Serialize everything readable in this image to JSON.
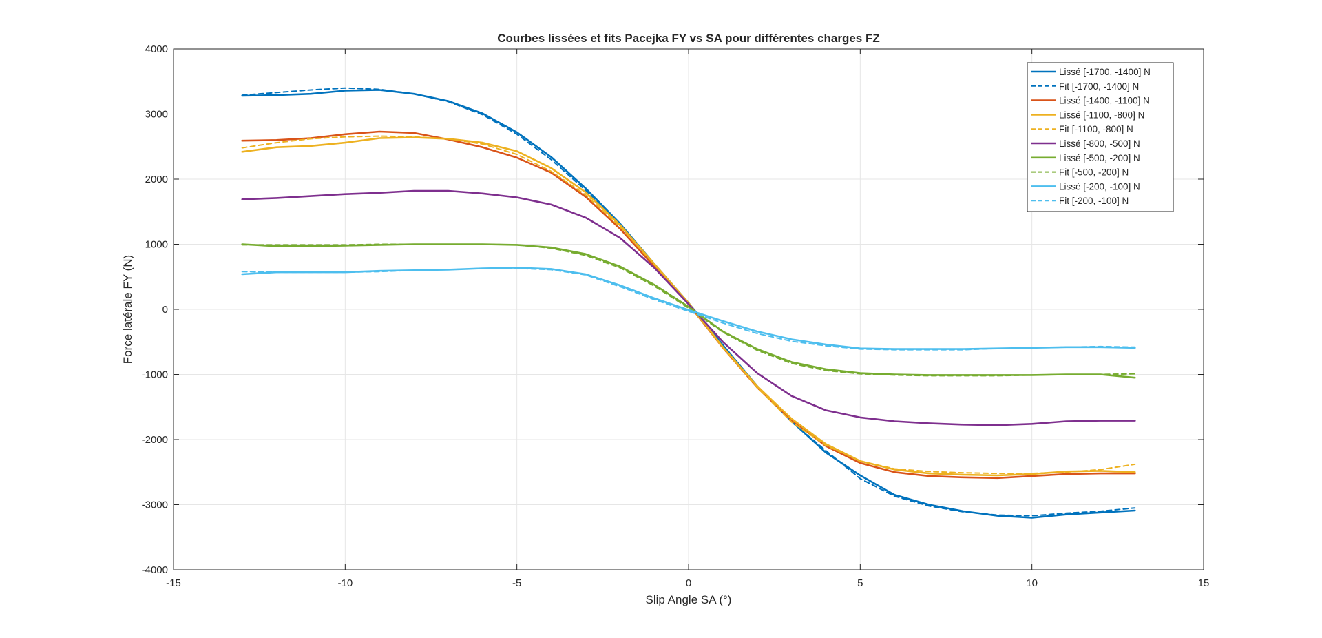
{
  "chart_data": {
    "type": "line",
    "title": "Courbes lissées et fits Pacejka FY vs SA pour différentes charges FZ",
    "xlabel": "Slip Angle SA (°)",
    "ylabel": "Force latérale FY (N)",
    "xlim": [
      -15,
      15
    ],
    "ylim": [
      -4000,
      4000
    ],
    "xticks": [
      -15,
      -10,
      -5,
      0,
      5,
      10,
      15
    ],
    "yticks": [
      -4000,
      -3000,
      -2000,
      -1000,
      0,
      1000,
      2000,
      3000,
      4000
    ],
    "grid": true,
    "legend_position": "top-right",
    "series": [
      {
        "name": "Lissé [-1700, -1400] N",
        "style": "solid",
        "color": "#0072BD",
        "x": [
          -13,
          -12,
          -11,
          -10,
          -9,
          -8,
          -7,
          -6,
          -5,
          -4,
          -3,
          -2,
          -1,
          0,
          1,
          2,
          3,
          4,
          5,
          6,
          7,
          8,
          9,
          10,
          11,
          12,
          13
        ],
        "y": [
          3280,
          3290,
          3310,
          3360,
          3370,
          3310,
          3200,
          3010,
          2720,
          2340,
          1860,
          1320,
          700,
          100,
          -550,
          -1180,
          -1720,
          -2200,
          -2550,
          -2850,
          -3000,
          -3100,
          -3170,
          -3200,
          -3150,
          -3120,
          -3090
        ]
      },
      {
        "name": "Fit [-1700, -1400] N",
        "style": "dashed",
        "color": "#0072BD",
        "x": [
          -13,
          -12,
          -11,
          -10,
          -9,
          -8,
          -7,
          -6,
          -5,
          -4,
          -3,
          -2,
          -1,
          0,
          1,
          2,
          3,
          4,
          5,
          6,
          7,
          8,
          9,
          10,
          11,
          12,
          13
        ],
        "y": [
          3290,
          3330,
          3370,
          3400,
          3380,
          3310,
          3190,
          2990,
          2690,
          2300,
          1830,
          1290,
          690,
          80,
          -560,
          -1180,
          -1730,
          -2170,
          -2600,
          -2870,
          -3020,
          -3110,
          -3160,
          -3170,
          -3130,
          -3100,
          -3050
        ]
      },
      {
        "name": "Lissé [-1400, -1100] N",
        "style": "solid",
        "color": "#D95319",
        "x": [
          -13,
          -12,
          -11,
          -10,
          -9,
          -8,
          -7,
          -6,
          -5,
          -4,
          -3,
          -2,
          -1,
          0,
          1,
          2,
          3,
          4,
          5,
          6,
          7,
          8,
          9,
          10,
          11,
          12,
          13
        ],
        "y": [
          2590,
          2600,
          2630,
          2690,
          2730,
          2710,
          2610,
          2490,
          2330,
          2100,
          1730,
          1240,
          660,
          80,
          -590,
          -1200,
          -1700,
          -2100,
          -2360,
          -2500,
          -2560,
          -2580,
          -2590,
          -2560,
          -2530,
          -2520,
          -2520
        ]
      },
      {
        "name": "Lissé [-1100, -800] N",
        "style": "solid",
        "color": "#EDB120",
        "x": [
          -13,
          -12,
          -11,
          -10,
          -9,
          -8,
          -7,
          -6,
          -5,
          -4,
          -3,
          -2,
          -1,
          0,
          1,
          2,
          3,
          4,
          5,
          6,
          7,
          8,
          9,
          10,
          11,
          12,
          13
        ],
        "y": [
          2420,
          2490,
          2510,
          2560,
          2630,
          2640,
          2620,
          2560,
          2430,
          2170,
          1800,
          1300,
          700,
          100,
          -580,
          -1180,
          -1680,
          -2070,
          -2330,
          -2460,
          -2520,
          -2540,
          -2550,
          -2530,
          -2490,
          -2480,
          -2500
        ]
      },
      {
        "name": "Fit [-1100, -800] N",
        "style": "dashed",
        "color": "#EDB120",
        "x": [
          -13,
          -12,
          -11,
          -10,
          -9,
          -8,
          -7,
          -6,
          -5,
          -4,
          -3,
          -2,
          -1,
          0,
          1,
          2,
          3,
          4,
          5,
          6,
          7,
          8,
          9,
          10,
          11,
          12,
          13
        ],
        "y": [
          2480,
          2560,
          2620,
          2650,
          2660,
          2650,
          2620,
          2540,
          2380,
          2120,
          1760,
          1270,
          690,
          80,
          -590,
          -1200,
          -1730,
          -2090,
          -2330,
          -2450,
          -2490,
          -2510,
          -2520,
          -2520,
          -2500,
          -2460,
          -2380
        ]
      },
      {
        "name": "Lissé [-800, -500] N",
        "style": "solid",
        "color": "#7E2F8E",
        "x": [
          -13,
          -12,
          -11,
          -10,
          -9,
          -8,
          -7,
          -6,
          -5,
          -4,
          -3,
          -2,
          -1,
          0,
          1,
          2,
          3,
          4,
          5,
          6,
          7,
          8,
          9,
          10,
          11,
          12,
          13
        ],
        "y": [
          1690,
          1710,
          1740,
          1770,
          1790,
          1820,
          1820,
          1780,
          1720,
          1610,
          1410,
          1100,
          640,
          80,
          -500,
          -980,
          -1330,
          -1550,
          -1660,
          -1720,
          -1750,
          -1770,
          -1780,
          -1760,
          -1720,
          -1710,
          -1710
        ]
      },
      {
        "name": "Lissé [-500, -200] N",
        "style": "solid",
        "color": "#77AC30",
        "x": [
          -13,
          -12,
          -11,
          -10,
          -9,
          -8,
          -7,
          -6,
          -5,
          -4,
          -3,
          -2,
          -1,
          0,
          1,
          2,
          3,
          4,
          5,
          6,
          7,
          8,
          9,
          10,
          11,
          12,
          13
        ],
        "y": [
          1000,
          970,
          970,
          980,
          990,
          1000,
          1000,
          1000,
          990,
          950,
          850,
          660,
          380,
          40,
          -340,
          -610,
          -810,
          -920,
          -980,
          -1000,
          -1010,
          -1010,
          -1010,
          -1010,
          -1000,
          -1000,
          -1050
        ]
      },
      {
        "name": "Fit [-500, -200] N",
        "style": "dashed",
        "color": "#77AC30",
        "x": [
          -13,
          -12,
          -11,
          -10,
          -9,
          -8,
          -7,
          -6,
          -5,
          -4,
          -3,
          -2,
          -1,
          0,
          1,
          2,
          3,
          4,
          5,
          6,
          7,
          8,
          9,
          10,
          11,
          12,
          13
        ],
        "y": [
          990,
          990,
          990,
          990,
          1000,
          1000,
          1000,
          1000,
          990,
          940,
          830,
          640,
          360,
          20,
          -350,
          -630,
          -830,
          -940,
          -990,
          -1010,
          -1020,
          -1020,
          -1020,
          -1010,
          -1000,
          -1000,
          -990
        ]
      },
      {
        "name": "Lissé [-200, -100] N",
        "style": "solid",
        "color": "#4DBEEE",
        "x": [
          -13,
          -12,
          -11,
          -10,
          -9,
          -8,
          -7,
          -6,
          -5,
          -4,
          -3,
          -2,
          -1,
          0,
          1,
          2,
          3,
          4,
          5,
          6,
          7,
          8,
          9,
          10,
          11,
          12,
          13
        ],
        "y": [
          540,
          570,
          570,
          570,
          590,
          600,
          610,
          630,
          640,
          620,
          540,
          370,
          170,
          -10,
          -180,
          -340,
          -460,
          -540,
          -600,
          -610,
          -610,
          -610,
          -600,
          -590,
          -580,
          -580,
          -590
        ]
      },
      {
        "name": "Fit [-200, -100] N",
        "style": "dashed",
        "color": "#4DBEEE",
        "x": [
          -13,
          -12,
          -11,
          -10,
          -9,
          -8,
          -7,
          -6,
          -5,
          -4,
          -3,
          -2,
          -1,
          0,
          1,
          2,
          3,
          4,
          5,
          6,
          7,
          8,
          9,
          10,
          11,
          12,
          13
        ],
        "y": [
          580,
          570,
          570,
          570,
          580,
          600,
          610,
          630,
          630,
          610,
          530,
          350,
          150,
          -30,
          -210,
          -370,
          -490,
          -560,
          -610,
          -620,
          -620,
          -620,
          -600,
          -590,
          -580,
          -570,
          -580
        ]
      }
    ]
  }
}
